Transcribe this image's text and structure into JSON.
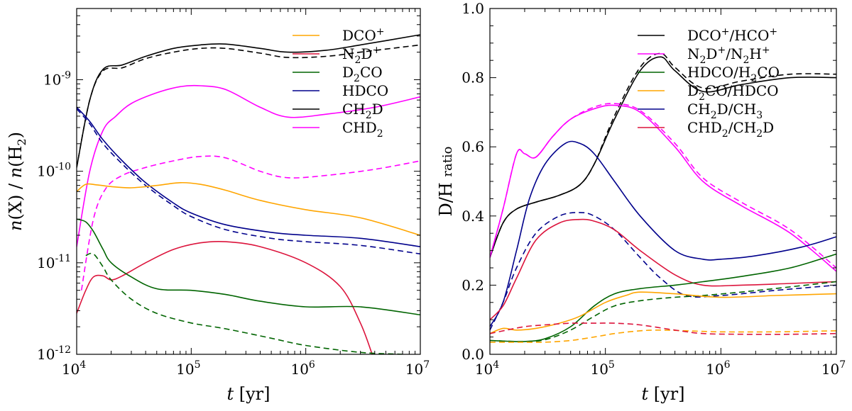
{
  "chart_data": [
    {
      "type": "line",
      "title": "",
      "xlabel": "t [yr]",
      "xlabel_italic": "t",
      "xlabel_unit": "[yr]",
      "ylabel": "n(X) / n(H2)",
      "xscale": "log",
      "yscale": "log",
      "xlim": [
        10000,
        10000000
      ],
      "ylim": [
        1e-12,
        6e-09
      ],
      "xticks": [
        {
          "base": "10",
          "exp": "4",
          "value": 10000
        },
        {
          "base": "10",
          "exp": "5",
          "value": 100000
        },
        {
          "base": "10",
          "exp": "6",
          "value": 1000000
        },
        {
          "base": "10",
          "exp": "7",
          "value": 10000000
        }
      ],
      "yticks": [
        {
          "base": "10",
          "exp": "-12",
          "value": 1e-12
        },
        {
          "base": "10",
          "exp": "-11",
          "value": 1e-11
        },
        {
          "base": "10",
          "exp": "-10",
          "value": 1e-10
        },
        {
          "base": "10",
          "exp": "-9",
          "value": 1e-09
        }
      ],
      "legend": {
        "position": "top-right",
        "entries": [
          {
            "label": "DCO+",
            "color": "#ffa500"
          },
          {
            "label": "N2D+",
            "color": "#dc143c"
          },
          {
            "label": "D2CO",
            "color": "#006400"
          },
          {
            "label": "HDCO",
            "color": "#00008b"
          },
          {
            "label": "CH2D",
            "color": "#000000"
          },
          {
            "label": "CHD2",
            "color": "#ff00ff"
          }
        ]
      },
      "series": [
        {
          "name": "CH2D",
          "color": "#000000",
          "dash": false,
          "x": [
            10000,
            13000,
            17000,
            25000,
            40000,
            70000,
            120000,
            200000,
            400000,
            700000,
            1500000,
            3000000,
            10000000
          ],
          "y": [
            1.1e-10,
            6e-10,
            1.3e-09,
            1.45e-09,
            1.8e-09,
            2.2e-09,
            2.4e-09,
            2.45e-09,
            2.2e-09,
            2e-09,
            2.1e-09,
            2.4e-09,
            3.1e-09
          ]
        },
        {
          "name": "CH2D",
          "color": "#000000",
          "dash": true,
          "x": [
            10000,
            13000,
            17000,
            25000,
            40000,
            70000,
            120000,
            200000,
            400000,
            700000,
            1500000,
            3000000,
            10000000
          ],
          "y": [
            1.1e-10,
            6e-10,
            1.25e-09,
            1.35e-09,
            1.7e-09,
            2e-09,
            2.2e-09,
            2.2e-09,
            1.95e-09,
            1.75e-09,
            1.8e-09,
            2e-09,
            2.4e-09
          ]
        },
        {
          "name": "CHD2",
          "color": "#ff00ff",
          "dash": false,
          "x": [
            10000,
            13000,
            17000,
            22000,
            30000,
            50000,
            80000,
            120000,
            200000,
            400000,
            700000,
            1500000,
            4000000,
            10000000
          ],
          "y": [
            1.5e-11,
            1e-10,
            2.8e-10,
            4e-10,
            5.5e-10,
            7.2e-10,
            8.4e-10,
            8.6e-10,
            7.8e-10,
            5e-10,
            3.9e-10,
            4.2e-10,
            5e-10,
            6.5e-10
          ]
        },
        {
          "name": "CHD2",
          "color": "#ff00ff",
          "dash": true,
          "x": [
            11000,
            14000,
            18000,
            25000,
            40000,
            70000,
            120000,
            200000,
            400000,
            700000,
            1500000,
            4000000,
            10000000
          ],
          "y": [
            5e-12,
            3e-11,
            6.5e-11,
            9e-11,
            1.1e-10,
            1.3e-10,
            1.45e-10,
            1.4e-10,
            1e-10,
            8.5e-11,
            9e-11,
            1.05e-10,
            1.3e-10
          ]
        },
        {
          "name": "HDCO",
          "color": "#00008b",
          "dash": false,
          "x": [
            10000,
            13000,
            17000,
            25000,
            40000,
            70000,
            100000,
            200000,
            500000,
            1000000,
            3000000,
            10000000
          ],
          "y": [
            5e-10,
            3.5e-10,
            2.2e-10,
            1.3e-10,
            7.5e-11,
            4.5e-11,
            3.5e-11,
            2.6e-11,
            2.15e-11,
            2e-11,
            1.85e-11,
            1.5e-11
          ]
        },
        {
          "name": "HDCO",
          "color": "#00008b",
          "dash": true,
          "x": [
            10000,
            13000,
            17000,
            25000,
            40000,
            70000,
            100000,
            200000,
            500000,
            1000000,
            3000000,
            10000000
          ],
          "y": [
            4.8e-10,
            3.3e-10,
            2e-10,
            1.2e-10,
            7e-11,
            4.2e-11,
            3.2e-11,
            2.3e-11,
            1.85e-11,
            1.7e-11,
            1.55e-11,
            1.25e-11
          ]
        },
        {
          "name": "DCO+",
          "color": "#ffa500",
          "dash": false,
          "x": [
            10000,
            12000,
            15000,
            20000,
            30000,
            50000,
            80000,
            120000,
            200000,
            400000,
            1000000,
            3000000,
            10000000
          ],
          "y": [
            6e-11,
            7.2e-11,
            7.1e-11,
            6.8e-11,
            6.6e-11,
            7e-11,
            7.5e-11,
            7.2e-11,
            6.2e-11,
            4.8e-11,
            3.8e-11,
            3.1e-11,
            2e-11
          ]
        },
        {
          "name": "N2D+",
          "color": "#dc143c",
          "dash": false,
          "x": [
            10000,
            12000,
            14000,
            17000,
            20000,
            25000,
            40000,
            70000,
            120000,
            200000,
            400000,
            1000000,
            2000000,
            3000000,
            3800000
          ],
          "y": [
            2.8e-12,
            5e-12,
            7e-12,
            7.2e-12,
            6.5e-12,
            7.2e-12,
            1e-11,
            1.4e-11,
            1.65e-11,
            1.7e-11,
            1.5e-11,
            1e-11,
            5.5e-12,
            2.2e-12,
            1e-12
          ]
        },
        {
          "name": "D2CO",
          "color": "#006400",
          "dash": false,
          "x": [
            10000,
            12000,
            14000,
            17000,
            20000,
            30000,
            50000,
            100000,
            200000,
            400000,
            1000000,
            3000000,
            10000000
          ],
          "y": [
            3e-11,
            2.8e-11,
            2.2e-11,
            1.4e-11,
            1e-11,
            7e-12,
            5.2e-12,
            5e-12,
            4.5e-12,
            3.8e-12,
            3.3e-12,
            3.3e-12,
            2.7e-12
          ]
        },
        {
          "name": "D2CO",
          "color": "#006400",
          "dash": true,
          "x": [
            12000,
            14000,
            17000,
            20000,
            30000,
            50000,
            100000,
            200000,
            500000,
            1000000,
            3000000,
            7000000
          ],
          "y": [
            1.2e-11,
            1.25e-11,
            9e-12,
            6.5e-12,
            4e-12,
            2.8e-12,
            2.2e-12,
            1.9e-12,
            1.5e-12,
            1.25e-12,
            1.05e-12,
            1e-12
          ]
        }
      ]
    },
    {
      "type": "line",
      "title": "",
      "xlabel": "t [yr]",
      "xlabel_italic": "t",
      "xlabel_unit": "[yr]",
      "ylabel": "D/H ratio",
      "xscale": "log",
      "yscale": "linear",
      "xlim": [
        10000,
        10000000
      ],
      "ylim": [
        0.0,
        1.0
      ],
      "xticks": [
        {
          "base": "10",
          "exp": "4",
          "value": 10000
        },
        {
          "base": "10",
          "exp": "5",
          "value": 100000
        },
        {
          "base": "10",
          "exp": "6",
          "value": 1000000
        },
        {
          "base": "10",
          "exp": "7",
          "value": 10000000
        }
      ],
      "yticks": [
        {
          "label": "0.0",
          "value": 0.0
        },
        {
          "label": "0.2",
          "value": 0.2
        },
        {
          "label": "0.4",
          "value": 0.4
        },
        {
          "label": "0.6",
          "value": 0.6
        },
        {
          "label": "0.8",
          "value": 0.8
        },
        {
          "label": "1.0",
          "value": 1.0
        }
      ],
      "legend": {
        "position": "top-right",
        "entries": [
          {
            "label": "DCO+/HCO+",
            "color": "#000000"
          },
          {
            "label": "N2D+/N2H+",
            "color": "#ff00ff"
          },
          {
            "label": "HDCO/H2CO",
            "color": "#006400"
          },
          {
            "label": "D2CO/HDCO",
            "color": "#ffa500"
          },
          {
            "label": "CH2D/CH3",
            "color": "#00008b"
          },
          {
            "label": "CHD2/CH2D",
            "color": "#dc143c"
          }
        ]
      },
      "series": [
        {
          "name": "DCO+/HCO+",
          "color": "#000000",
          "dash": false,
          "x": [
            10000,
            13000,
            17000,
            25000,
            40000,
            60000,
            80000,
            120000,
            200000,
            300000,
            400000,
            700000,
            1500000,
            4000000,
            10000000
          ],
          "y": [
            0.28,
            0.38,
            0.42,
            0.44,
            0.46,
            0.49,
            0.55,
            0.68,
            0.82,
            0.86,
            0.82,
            0.76,
            0.78,
            0.8,
            0.8
          ]
        },
        {
          "name": "DCO+/HCO+",
          "color": "#000000",
          "dash": true,
          "x": [
            10000,
            13000,
            17000,
            25000,
            40000,
            60000,
            80000,
            120000,
            200000,
            300000,
            400000,
            700000,
            1500000,
            4000000,
            10000000
          ],
          "y": [
            0.28,
            0.38,
            0.42,
            0.44,
            0.46,
            0.49,
            0.55,
            0.69,
            0.83,
            0.87,
            0.83,
            0.77,
            0.79,
            0.81,
            0.81
          ]
        },
        {
          "name": "N2D+/N2H+",
          "color": "#ff00ff",
          "dash": false,
          "x": [
            10000,
            13000,
            17000,
            20000,
            25000,
            35000,
            50000,
            80000,
            120000,
            200000,
            400000,
            700000,
            1500000,
            4000000,
            10000000
          ],
          "y": [
            0.28,
            0.42,
            0.58,
            0.58,
            0.57,
            0.63,
            0.68,
            0.71,
            0.72,
            0.7,
            0.6,
            0.5,
            0.43,
            0.35,
            0.24
          ]
        },
        {
          "name": "N2D+/N2H+",
          "color": "#ff00ff",
          "dash": true,
          "x": [
            10000,
            13000,
            17000,
            20000,
            25000,
            35000,
            50000,
            80000,
            120000,
            200000,
            400000,
            700000,
            1500000,
            4000000,
            10000000
          ],
          "y": [
            0.28,
            0.42,
            0.58,
            0.58,
            0.57,
            0.63,
            0.68,
            0.715,
            0.725,
            0.705,
            0.61,
            0.51,
            0.44,
            0.36,
            0.25
          ]
        },
        {
          "name": "CH2D/CH3",
          "color": "#00008b",
          "dash": false,
          "x": [
            10000,
            13000,
            17000,
            22000,
            30000,
            45000,
            60000,
            80000,
            120000,
            200000,
            400000,
            700000,
            1000000,
            2000000,
            5000000,
            10000000
          ],
          "y": [
            0.08,
            0.15,
            0.3,
            0.45,
            0.55,
            0.61,
            0.61,
            0.58,
            0.5,
            0.4,
            0.3,
            0.275,
            0.275,
            0.285,
            0.31,
            0.34
          ]
        },
        {
          "name": "CH2D/CH3",
          "color": "#00008b",
          "dash": true,
          "x": [
            10000,
            13000,
            17000,
            25000,
            40000,
            60000,
            80000,
            120000,
            200000,
            300000,
            500000,
            1000000,
            3000000,
            10000000
          ],
          "y": [
            0.07,
            0.15,
            0.25,
            0.35,
            0.4,
            0.41,
            0.4,
            0.36,
            0.28,
            0.22,
            0.17,
            0.17,
            0.185,
            0.2
          ]
        },
        {
          "name": "CHD2/CH2D",
          "color": "#dc143c",
          "dash": false,
          "x": [
            10000,
            13000,
            17000,
            25000,
            40000,
            60000,
            80000,
            120000,
            200000,
            400000,
            700000,
            1500000,
            4000000,
            10000000
          ],
          "y": [
            0.1,
            0.14,
            0.22,
            0.33,
            0.38,
            0.39,
            0.385,
            0.36,
            0.3,
            0.23,
            0.2,
            0.2,
            0.205,
            0.21
          ]
        },
        {
          "name": "HDCO/H2CO",
          "color": "#006400",
          "dash": false,
          "x": [
            10000,
            14000,
            20000,
            30000,
            50000,
            80000,
            120000,
            200000,
            400000,
            700000,
            1500000,
            4000000,
            10000000
          ],
          "y": [
            0.04,
            0.038,
            0.037,
            0.045,
            0.08,
            0.14,
            0.175,
            0.19,
            0.2,
            0.21,
            0.225,
            0.25,
            0.29
          ]
        },
        {
          "name": "HDCO/H2CO",
          "color": "#006400",
          "dash": true,
          "x": [
            10000,
            14000,
            20000,
            30000,
            50000,
            80000,
            120000,
            200000,
            400000,
            700000,
            1500000,
            4000000,
            10000000
          ],
          "y": [
            0.04,
            0.038,
            0.037,
            0.042,
            0.07,
            0.11,
            0.14,
            0.155,
            0.165,
            0.17,
            0.18,
            0.195,
            0.21
          ]
        },
        {
          "name": "D2CO/HDCO",
          "color": "#ffa500",
          "dash": false,
          "x": [
            10000,
            13000,
            17000,
            25000,
            40000,
            60000,
            100000,
            150000,
            200000,
            400000,
            1000000,
            3000000,
            10000000
          ],
          "y": [
            0.06,
            0.075,
            0.07,
            0.075,
            0.09,
            0.11,
            0.15,
            0.17,
            0.18,
            0.175,
            0.165,
            0.17,
            0.175
          ]
        },
        {
          "name": "D2CO/HDCO",
          "color": "#ffa500",
          "dash": true,
          "x": [
            10000,
            14000,
            20000,
            30000,
            50000,
            80000,
            120000,
            200000,
            300000,
            500000,
            1000000,
            3000000,
            10000000
          ],
          "y": [
            0.035,
            0.035,
            0.035,
            0.035,
            0.04,
            0.05,
            0.06,
            0.068,
            0.07,
            0.068,
            0.065,
            0.065,
            0.068
          ]
        },
        {
          "name": "CHD2/CH2D",
          "color": "#dc143c",
          "dash": true,
          "x": [
            10000,
            14000,
            20000,
            30000,
            50000,
            80000,
            120000,
            200000,
            400000,
            700000,
            1500000,
            4000000,
            10000000
          ],
          "y": [
            0.06,
            0.07,
            0.08,
            0.085,
            0.09,
            0.09,
            0.09,
            0.085,
            0.07,
            0.06,
            0.058,
            0.058,
            0.06
          ]
        }
      ]
    }
  ]
}
